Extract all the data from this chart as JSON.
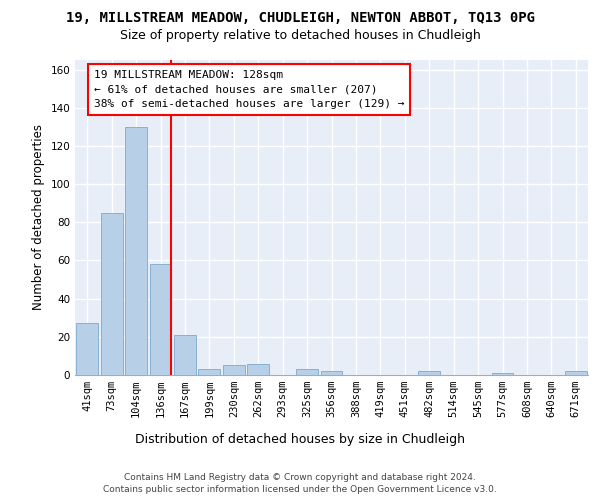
{
  "title": "19, MILLSTREAM MEADOW, CHUDLEIGH, NEWTON ABBOT, TQ13 0PG",
  "subtitle": "Size of property relative to detached houses in Chudleigh",
  "xlabel": "Distribution of detached houses by size in Chudleigh",
  "ylabel": "Number of detached properties",
  "bar_labels": [
    "41sqm",
    "73sqm",
    "104sqm",
    "136sqm",
    "167sqm",
    "199sqm",
    "230sqm",
    "262sqm",
    "293sqm",
    "325sqm",
    "356sqm",
    "388sqm",
    "419sqm",
    "451sqm",
    "482sqm",
    "514sqm",
    "545sqm",
    "577sqm",
    "608sqm",
    "640sqm",
    "671sqm"
  ],
  "bar_values": [
    27,
    85,
    130,
    58,
    21,
    3,
    5,
    6,
    0,
    3,
    2,
    0,
    0,
    0,
    2,
    0,
    0,
    1,
    0,
    0,
    2
  ],
  "bar_color": "#b8cfe8",
  "bar_edge_color": "#7aaad0",
  "red_line_x": 3,
  "annotation_line1": "19 MILLSTREAM MEADOW: 128sqm",
  "annotation_line2": "← 61% of detached houses are smaller (207)",
  "annotation_line3": "38% of semi-detached houses are larger (129) →",
  "ylim": [
    0,
    165
  ],
  "yticks": [
    0,
    20,
    40,
    60,
    80,
    100,
    120,
    140,
    160
  ],
  "background_color": "#e8eef8",
  "grid_color": "#ffffff",
  "footer_line1": "Contains HM Land Registry data © Crown copyright and database right 2024.",
  "footer_line2": "Contains public sector information licensed under the Open Government Licence v3.0.",
  "title_fontsize": 10,
  "subtitle_fontsize": 9,
  "annotation_fontsize": 8,
  "xlabel_fontsize": 9,
  "ylabel_fontsize": 8.5,
  "tick_fontsize": 7.5,
  "footer_fontsize": 6.5
}
